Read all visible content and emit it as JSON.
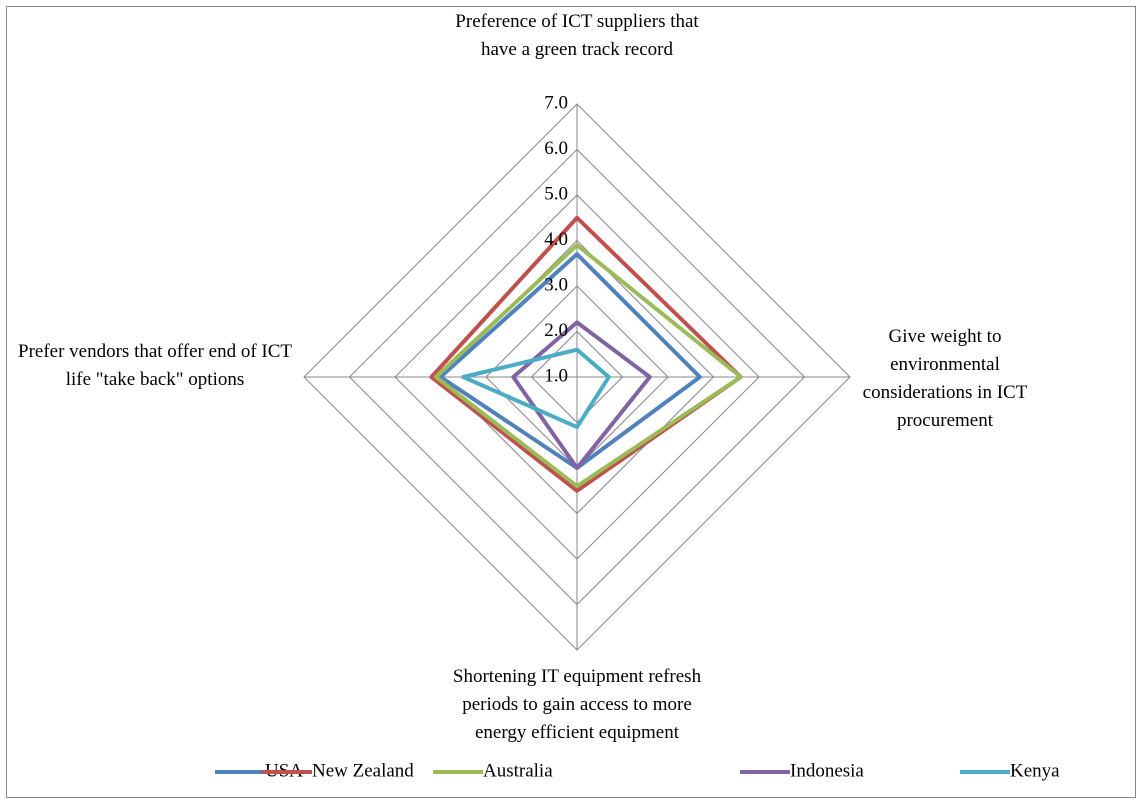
{
  "chart_data": {
    "type": "radar",
    "categories": [
      "Preference of ICT suppliers that have a green track record",
      "Give weight to environmental considerations in ICT procurement",
      "Shortening IT equipment refresh periods to gain access to more energy efficient equipment",
      "Prefer vendors that offer end of ICT life \"take back\" options"
    ],
    "series": [
      {
        "name": "USA",
        "color": "#4f81bd",
        "values": [
          3.7,
          3.7,
          3.0,
          4.0
        ]
      },
      {
        "name": "New Zealand",
        "color": "#c0504d",
        "values": [
          4.5,
          4.6,
          3.5,
          4.2
        ]
      },
      {
        "name": "Australia",
        "color": "#9bbb59",
        "values": [
          3.9,
          4.6,
          3.4,
          4.1
        ]
      },
      {
        "name": "Indonesia",
        "color": "#8064a2",
        "values": [
          2.2,
          2.6,
          3.0,
          2.4
        ]
      },
      {
        "name": "Kenya",
        "color": "#4bacc6",
        "values": [
          1.6,
          1.7,
          2.1,
          3.5
        ]
      }
    ],
    "ylim": [
      1,
      7
    ],
    "yticks": [
      {
        "value": 1,
        "label": "1.0"
      },
      {
        "value": 2,
        "label": "2.0"
      },
      {
        "value": 3,
        "label": "3.0"
      },
      {
        "value": 4,
        "label": "4.0"
      },
      {
        "value": 5,
        "label": "5.0"
      },
      {
        "value": 6,
        "label": "6.0"
      },
      {
        "value": 7,
        "label": "7.0"
      }
    ],
    "grid": true,
    "legend": "bottom"
  }
}
